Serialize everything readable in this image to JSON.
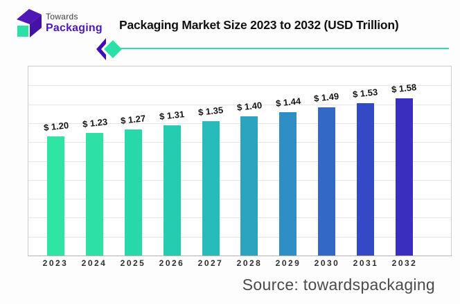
{
  "logo": {
    "line1": "Towards",
    "line2": "Packaging"
  },
  "header": {
    "title": "Packaging Market Size 2023 to 2032 (USD Trillion)"
  },
  "footer": {
    "source": "Source: towardspackaging"
  },
  "chart_data": {
    "type": "bar",
    "title": "Packaging Market Size 2023 to 2032 (USD Trillion)",
    "unit": "USD Trillion",
    "categories": [
      "2023",
      "2024",
      "2025",
      "2026",
      "2027",
      "2028",
      "2029",
      "2030",
      "2031",
      "2032"
    ],
    "values": [
      1.2,
      1.23,
      1.27,
      1.31,
      1.35,
      1.4,
      1.44,
      1.49,
      1.53,
      1.58
    ],
    "value_labels": [
      "$ 1.20",
      "$ 1.23",
      "$ 1.27",
      "$ 1.31",
      "$ 1.35",
      "$ 1.40",
      "$ 1.44",
      "$ 1.49",
      "$ 1.53",
      "$ 1.58"
    ],
    "bar_colors": [
      "#2FE5A4",
      "#2CE1A6",
      "#29D8AA",
      "#26CCB0",
      "#28BBBB",
      "#2CA3BF",
      "#2F8EC3",
      "#3368C6",
      "#3449C6",
      "#3A2EBE"
    ],
    "ylim": [
      0,
      1.9
    ],
    "grid": true,
    "gridline_count": 9,
    "xlabel": "",
    "ylabel": "",
    "legend_position": "none"
  },
  "colors": {
    "accent_teal": "#2BDFA8",
    "accent_purple": "#4E17B8",
    "accent_purple_dark": "#3E0FB5",
    "grid_line": "#e6e6e6",
    "panel_border": "#cccccc",
    "axis_line": "#b5b5b5",
    "value_label_text": "#141414",
    "tick_text": "#2f2f2f",
    "source_text": "#4a4a4a",
    "title_text": "#101010"
  }
}
